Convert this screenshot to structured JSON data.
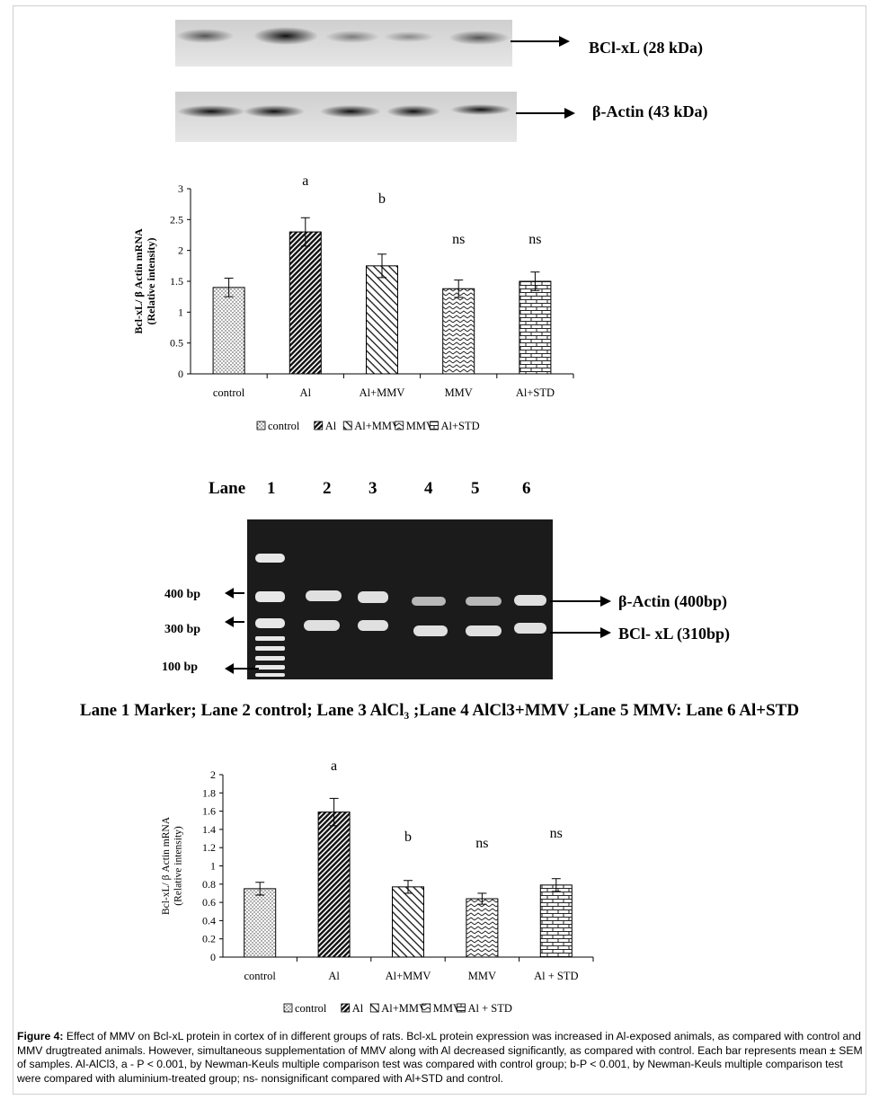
{
  "western_blot": {
    "bclxl_label": "BCl-xL (28 kDa)",
    "actin_label": "β-Actin (43 kDa)"
  },
  "pcr_gel": {
    "lane_header": "Lane",
    "lane_numbers": [
      "1",
      "2",
      "3",
      "4",
      "5",
      "6"
    ],
    "marker_labels": [
      "400 bp",
      "300 bp",
      "100 bp"
    ],
    "band_labels": [
      "β-Actin (400bp)",
      "BCl- xL (310bp)"
    ],
    "lane_caption": "Lane 1  Marker; Lane 2 control; Lane 3 AlCl₃ ;Lane 4 AlCl3+MMV ;Lane 5 MMV: Lane 6  Al+STD"
  },
  "chart_data": [
    {
      "type": "bar",
      "ylabel": "Bcl-xL/ β Actin mRNA (Relative intensity)",
      "ylim": [
        0,
        3
      ],
      "yticks": [
        "0",
        "0.5",
        "1",
        "1.5",
        "2",
        "2.5",
        "3"
      ],
      "categories": [
        "control",
        "Al",
        "Al+MMV",
        "MMV",
        "Al+STD"
      ],
      "values": [
        1.4,
        2.3,
        1.75,
        1.38,
        1.5
      ],
      "errors": [
        0.15,
        0.23,
        0.19,
        0.14,
        0.15
      ],
      "annotations": [
        "",
        "a",
        "b",
        "ns",
        "ns"
      ],
      "legend": [
        "control",
        "Al",
        "Al+MMV",
        "MMV",
        "Al+STD"
      ],
      "legend_position": "bottom"
    },
    {
      "type": "bar",
      "ylabel": "Bcl-xL/ β Actin mRNA (Relative intensity)",
      "ylim": [
        0,
        2
      ],
      "yticks": [
        "0",
        "0.2",
        "0.4",
        "0.6",
        "0.8",
        "1",
        "1.2",
        "1.4",
        "1.6",
        "1.8",
        "2"
      ],
      "categories": [
        "control",
        "Al",
        "Al+MMV",
        "MMV",
        "Al + STD"
      ],
      "values": [
        0.75,
        1.59,
        0.77,
        0.64,
        0.79
      ],
      "errors": [
        0.07,
        0.15,
        0.07,
        0.06,
        0.07
      ],
      "annotations": [
        "",
        "a",
        "b",
        "ns",
        "ns"
      ],
      "legend": [
        "control",
        "Al",
        "Al+MMV",
        "MMV",
        "Al + STD"
      ],
      "legend_position": "bottom"
    }
  ],
  "caption": {
    "label": "Figure 4:",
    "text": " Effect of MMV on Bcl-xL protein in cortex of in different groups of rats. Bcl-xL protein expression was increased in Al-exposed animals, as compared with control and MMV drugtreated animals. However, simultaneous supplementation of MMV along with Al decreased significantly, as compared with control. Each bar represents mean ± SEM of samples. Al-AlCl3, a - P < 0.001, by Newman-Keuls multiple comparison test was compared with control group; b-P < 0.001, by Newman-Keuls multiple comparison test were compared with aluminium-treated group; ns- nonsignificant compared with Al+STD and control."
  }
}
